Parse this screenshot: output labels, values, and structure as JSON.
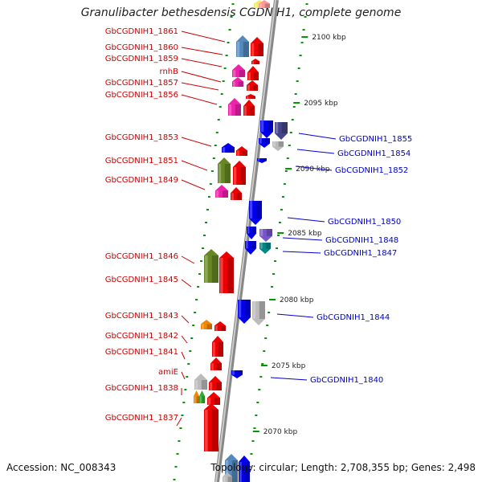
{
  "title": "Granulibacter bethesdensis CGDNIH1, complete genome",
  "footer": {
    "accession": "Accession: NC_008343",
    "topology": "Topology: circular; Length: 2,708,355 bp; Genes: 2,498"
  },
  "colors": {
    "forward": "#ee0000",
    "reverse": "#0000ee",
    "backbone": "#999999",
    "tick": "#009900",
    "label_forward": "#cc0000",
    "label_reverse": "#0000cc",
    "pink": "#ee22aa",
    "olive": "#668822",
    "steel": "#5588bb",
    "slate": "#444488",
    "violet": "#7755cc",
    "teal": "#008888",
    "orange": "#ee8800",
    "green": "#33aa33",
    "gray": "#bbbbbb",
    "yellow": "#eeee66",
    "light_red": "#ff9999"
  },
  "scale_labels": [
    "2100 kbp",
    "2095 kbp",
    "2090 kbp",
    "2085 kbp",
    "2080 kbp",
    "2075 kbp",
    "2070 kbp"
  ],
  "genes_left": [
    {
      "name": "GbCGDNIH1_1861"
    },
    {
      "name": "GbCGDNIH1_1860"
    },
    {
      "name": "GbCGDNIH1_1859"
    },
    {
      "name": "rnhB"
    },
    {
      "name": "GbCGDNIH1_1857"
    },
    {
      "name": "GbCGDNIH1_1856"
    },
    {
      "name": "GbCGDNIH1_1853"
    },
    {
      "name": "GbCGDNIH1_1851"
    },
    {
      "name": "GbCGDNIH1_1849"
    },
    {
      "name": "GbCGDNIH1_1846"
    },
    {
      "name": "GbCGDNIH1_1845"
    },
    {
      "name": "GbCGDNIH1_1843"
    },
    {
      "name": "GbCGDNIH1_1842"
    },
    {
      "name": "GbCGDNIH1_1841"
    },
    {
      "name": "amiE"
    },
    {
      "name": "GbCGDNIH1_1838"
    },
    {
      "name": "GbCGDNIH1_1837"
    }
  ],
  "genes_right": [
    {
      "name": "GbCGDNIH1_1855"
    },
    {
      "name": "GbCGDNIH1_1854"
    },
    {
      "name": "GbCGDNIH1_1852"
    },
    {
      "name": "GbCGDNIH1_1850"
    },
    {
      "name": "GbCGDNIH1_1848"
    },
    {
      "name": "GbCGDNIH1_1847"
    },
    {
      "name": "GbCGDNIH1_1844"
    },
    {
      "name": "GbCGDNIH1_1840"
    }
  ]
}
